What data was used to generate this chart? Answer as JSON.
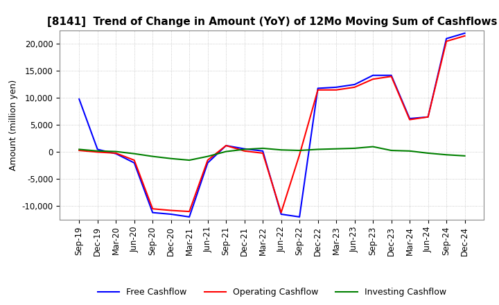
{
  "title": "[8141]  Trend of Change in Amount (YoY) of 12Mo Moving Sum of Cashflows",
  "ylabel": "Amount (million yen)",
  "x_labels": [
    "Sep-19",
    "Dec-19",
    "Mar-20",
    "Jun-20",
    "Sep-20",
    "Dec-20",
    "Mar-21",
    "Jun-21",
    "Sep-21",
    "Dec-21",
    "Mar-22",
    "Jun-22",
    "Sep-22",
    "Dec-22",
    "Mar-23",
    "Jun-23",
    "Sep-23",
    "Dec-23",
    "Mar-24",
    "Jun-24",
    "Sep-24",
    "Dec-24"
  ],
  "operating": [
    300,
    0,
    -200,
    -1500,
    -10500,
    -10800,
    -11000,
    -1500,
    1200,
    200,
    -200,
    -11200,
    -500,
    11500,
    11500,
    12000,
    13500,
    14000,
    6000,
    6500,
    20500,
    21500
  ],
  "investing": [
    500,
    200,
    100,
    -300,
    -800,
    -1200,
    -1500,
    -800,
    100,
    500,
    700,
    400,
    300,
    500,
    600,
    700,
    1000,
    300,
    200,
    -200,
    -500,
    -700
  ],
  "free": [
    9800,
    500,
    -300,
    -2000,
    -11200,
    -11500,
    -12000,
    -2000,
    1200,
    600,
    200,
    -11500,
    -12000,
    11800,
    12000,
    12500,
    14200,
    14200,
    6200,
    6500,
    21000,
    22000
  ],
  "ylim": [
    -12500,
    22500
  ],
  "yticks": [
    -10000,
    -5000,
    0,
    5000,
    10000,
    15000,
    20000
  ],
  "line_colors": {
    "operating": "#ff0000",
    "investing": "#008000",
    "free": "#0000ff"
  },
  "legend_labels": [
    "Operating Cashflow",
    "Investing Cashflow",
    "Free Cashflow"
  ],
  "background_color": "#ffffff",
  "grid_color": "#aaaaaa",
  "title_fontsize": 11,
  "axis_fontsize": 9,
  "tick_fontsize": 8.5
}
